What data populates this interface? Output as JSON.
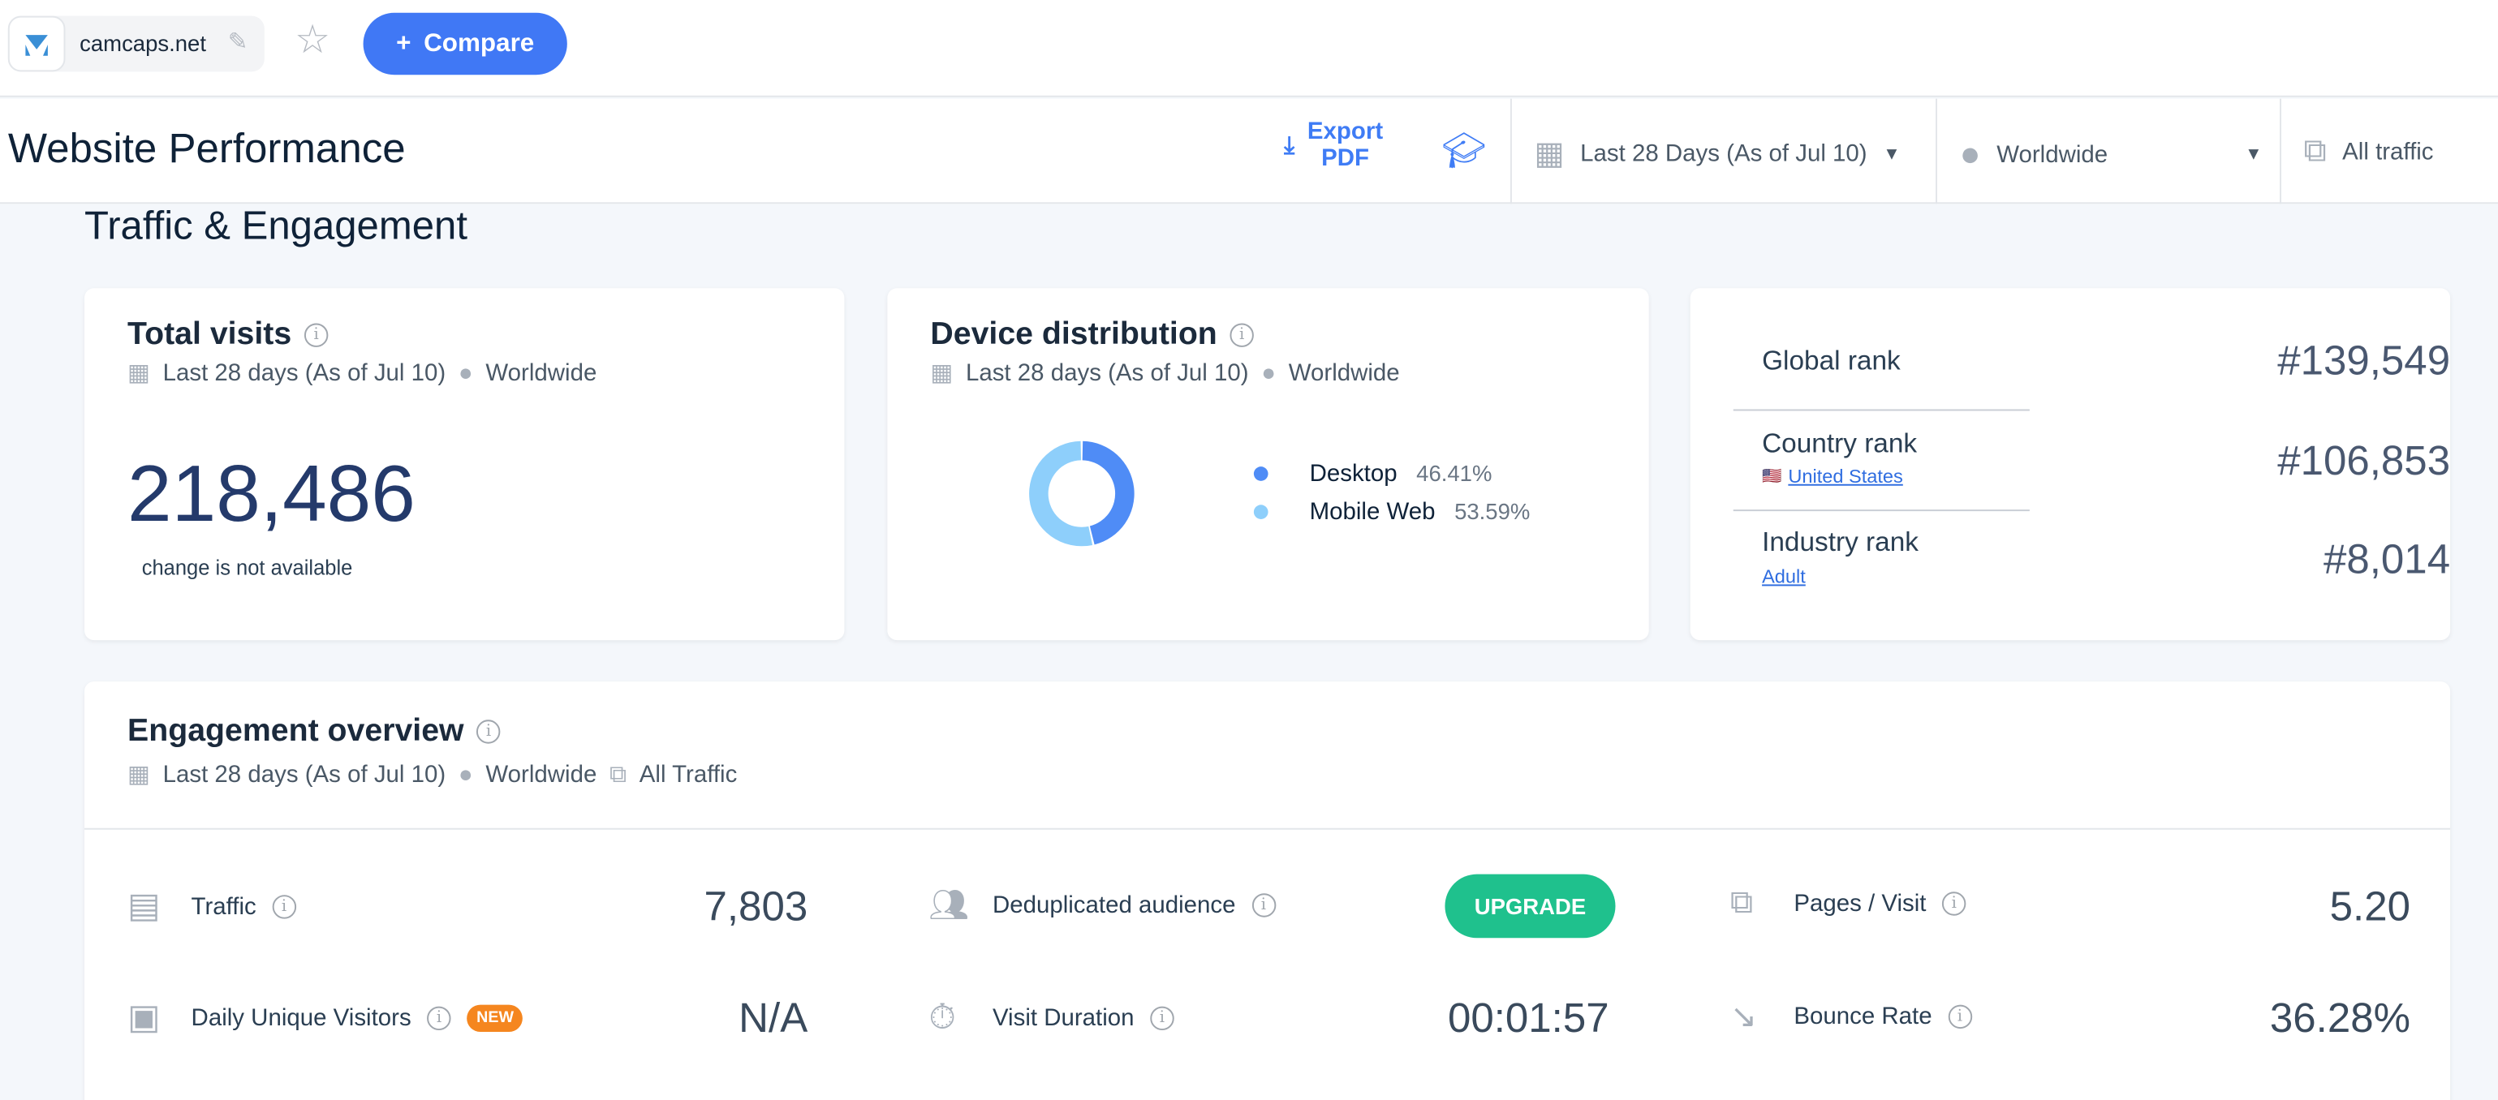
{
  "topbar": {
    "domain": "camcaps.net",
    "compare_label": "Compare"
  },
  "header": {
    "title": "Website Performance",
    "export_label_1": "Export",
    "export_label_2": "PDF",
    "date_range": "Last 28 Days (As of Jul 10)",
    "region": "Worldwide",
    "traffic": "All traffic"
  },
  "section_title": "Traffic & Engagement",
  "total_visits": {
    "title": "Total visits",
    "period": "Last 28 days (As of Jul 10)",
    "region": "Worldwide",
    "value": "218,486",
    "change": "change is not available"
  },
  "device": {
    "title": "Device distribution",
    "period": "Last 28 days (As of Jul 10)",
    "region": "Worldwide",
    "items": [
      {
        "label": "Desktop",
        "value": "46.41%",
        "percent": 46.41,
        "color": "#4f8cf6"
      },
      {
        "label": "Mobile Web",
        "value": "53.59%",
        "percent": 53.59,
        "color": "#8ecffb"
      }
    ]
  },
  "ranks": {
    "global_label": "Global rank",
    "global_value": "#139,549",
    "country_label": "Country rank",
    "country_name": "United States",
    "country_value": "#106,853",
    "industry_label": "Industry rank",
    "industry_name": "Adult",
    "industry_value": "#8,014"
  },
  "engagement": {
    "title": "Engagement overview",
    "period": "Last 28 days (As of Jul 10)",
    "region": "Worldwide",
    "traffic": "All Traffic",
    "traffic_label": "Traffic",
    "traffic_value": "7,803",
    "dedup_label": "Deduplicated audience",
    "upgrade_label": "UPGRADE",
    "pages_label": "Pages / Visit",
    "pages_value": "5.20",
    "duv_label": "Daily Unique Visitors",
    "new_badge": "NEW",
    "duv_value": "N/A",
    "duration_label": "Visit Duration",
    "duration_value": "00:01:57",
    "bounce_label": "Bounce Rate",
    "bounce_value": "36.28%"
  },
  "colors": {
    "accent": "#4078f5",
    "upgrade": "#1fc18d",
    "new_badge": "#f5861f"
  }
}
